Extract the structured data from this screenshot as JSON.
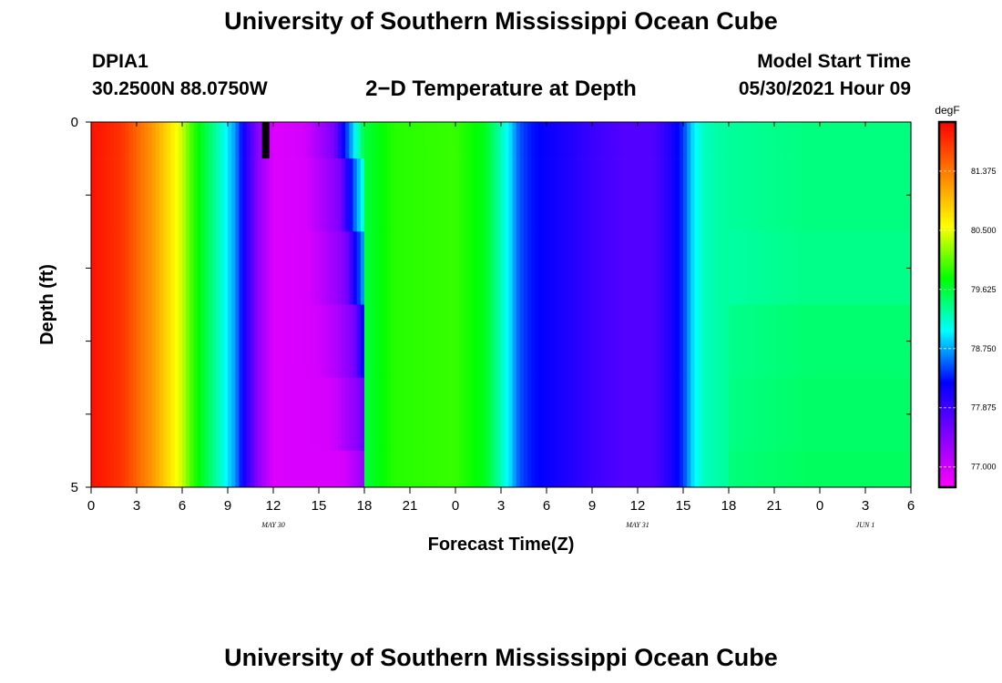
{
  "header": {
    "title": "University of Southern Mississippi Ocean Cube",
    "station_id": "DPIA1",
    "station_coords": "30.2500N  88.0750W",
    "plot_title": "2−D Temperature at Depth",
    "model_start_label": "Model Start Time",
    "model_start_value": "05/30/2021 Hour 09"
  },
  "footer": {
    "title": "University of Southern Mississippi Ocean Cube"
  },
  "chart_data": {
    "type": "heatmap",
    "title": "2−D Temperature at Depth",
    "xlabel": "Forecast Time(Z)",
    "ylabel": "Depth (ft)",
    "x_tick_labels": [
      "0",
      "3",
      "6",
      "9",
      "12",
      "15",
      "18",
      "21",
      "0",
      "3",
      "6",
      "9",
      "12",
      "15",
      "18",
      "21",
      "0",
      "3",
      "6"
    ],
    "date_labels": [
      {
        "label": "MAY  30",
        "hour": 12
      },
      {
        "label": "MAY  31",
        "hour": 36
      },
      {
        "label": "JUN  1",
        "hour": 51
      }
    ],
    "x_range_hours": [
      0,
      54
    ],
    "y_range_ft": [
      0,
      5
    ],
    "y_tick_labels": [
      {
        "depth": 0,
        "label": "0"
      },
      {
        "depth": 5,
        "label": "5"
      }
    ],
    "colorbar": {
      "unit": "degF",
      "range": [
        76.7,
        82.1
      ],
      "tick_values": [
        81.375,
        80.5,
        79.625,
        78.75,
        77.875,
        77.0
      ],
      "tick_labels": [
        "81.375",
        "80.500",
        "79.625",
        "78.750",
        "77.875",
        "77.000"
      ],
      "colormap": [
        "#ff00ff",
        "#8000ff",
        "#0000ff",
        "#00ffff",
        "#00ff00",
        "#ffff00",
        "#ff8000",
        "#ff0000"
      ]
    },
    "marker": {
      "hour": 11.5,
      "depth_range": [
        0,
        0.5
      ],
      "color": "#000000"
    },
    "temperature_profile_by_hour": [
      [
        0,
        82.0
      ],
      [
        2,
        81.8
      ],
      [
        4,
        81.2
      ],
      [
        5,
        80.8
      ],
      [
        6,
        80.4
      ],
      [
        6.6,
        80.0
      ],
      [
        7.5,
        79.6
      ],
      [
        8.5,
        79.2
      ],
      [
        9.5,
        78.7
      ],
      [
        10,
        78.2
      ],
      [
        11,
        77.4
      ],
      [
        12,
        76.9
      ],
      [
        14,
        76.95
      ],
      [
        16,
        77.5
      ],
      [
        17,
        78.6
      ],
      [
        18,
        79.6
      ],
      [
        20,
        79.9
      ],
      [
        24,
        79.95
      ],
      [
        26,
        79.7
      ],
      [
        27.5,
        79.0
      ],
      [
        28.2,
        78.5
      ],
      [
        29,
        78.3
      ],
      [
        31,
        78.1
      ],
      [
        33,
        77.9
      ],
      [
        35,
        77.75
      ],
      [
        37,
        77.75
      ],
      [
        38,
        78.0
      ],
      [
        39,
        78.4
      ],
      [
        39.6,
        78.9
      ],
      [
        40.3,
        79.2
      ],
      [
        41.5,
        79.3
      ],
      [
        44,
        79.35
      ],
      [
        47,
        79.4
      ],
      [
        50,
        79.4
      ],
      [
        54,
        79.4
      ]
    ],
    "depth_layers": [
      {
        "depth_range": [
          0.0,
          0.5
        ],
        "surface_shift_hours": 0.0,
        "warm_offset_degF": 0.0
      },
      {
        "depth_range": [
          0.5,
          1.5
        ],
        "surface_shift_hours": 0.4,
        "warm_offset_degF": 0.0
      },
      {
        "depth_range": [
          1.5,
          2.5
        ],
        "surface_shift_hours": 0.8,
        "warm_offset_degF": -0.05
      },
      {
        "depth_range": [
          2.5,
          3.5
        ],
        "surface_shift_hours": 1.3,
        "warm_offset_degF": -0.1
      },
      {
        "depth_range": [
          3.5,
          4.5
        ],
        "surface_shift_hours": 1.8,
        "warm_offset_degF": -0.15
      },
      {
        "depth_range": [
          4.5,
          5.0
        ],
        "surface_shift_hours": 2.6,
        "warm_offset_degF": -0.2
      }
    ]
  }
}
